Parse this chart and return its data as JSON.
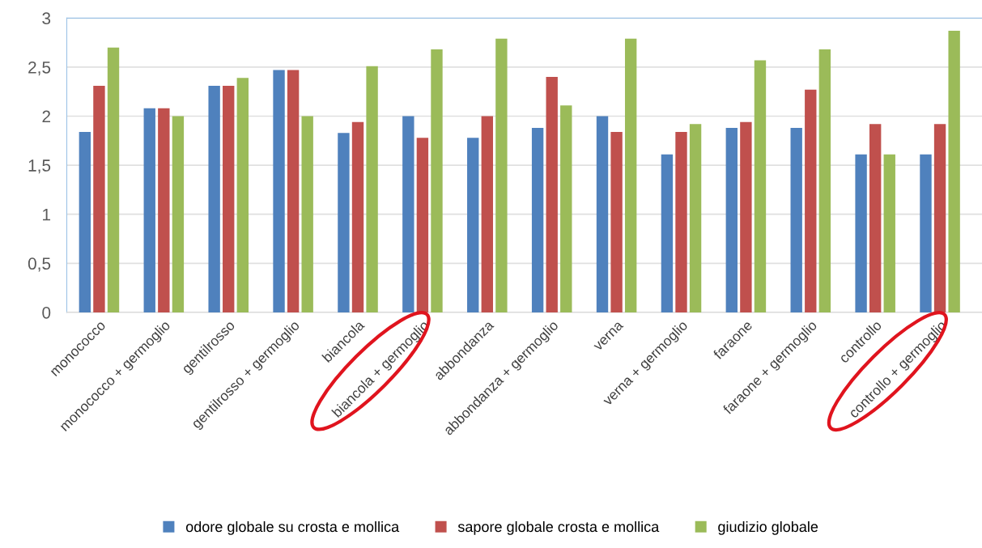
{
  "chart_data": {
    "type": "bar",
    "categories": [
      "monococco",
      "monococco + germoglio",
      "gentilrosso",
      "gentilrosso + germoglio",
      "biancola",
      "biancola + germoglio",
      "abbondanza",
      "abbondanza + germoglio",
      "verna",
      "verna + germoglio",
      "faraone",
      "faraone + germoglio",
      "controllo",
      "controllo + germoglio"
    ],
    "series": [
      {
        "name": "odore globale su crosta e mollica",
        "color": "#4f81bd",
        "values": [
          1.84,
          2.08,
          2.31,
          2.47,
          1.83,
          2.0,
          1.78,
          1.88,
          2.0,
          1.61,
          1.88,
          1.88,
          1.61,
          1.61
        ]
      },
      {
        "name": "sapore globale crosta e mollica",
        "color": "#c0504d",
        "values": [
          2.31,
          2.08,
          2.31,
          2.47,
          1.94,
          1.78,
          2.0,
          2.4,
          1.84,
          1.84,
          1.94,
          2.27,
          1.92,
          1.92
        ]
      },
      {
        "name": "giudizio globale",
        "color": "#9bbb59",
        "values": [
          2.7,
          2.0,
          2.39,
          2.0,
          2.51,
          2.68,
          2.79,
          2.11,
          2.79,
          1.92,
          2.57,
          2.68,
          1.61,
          2.87
        ]
      }
    ],
    "ylim": [
      0,
      3
    ],
    "yticks": [
      0,
      {
        "value": 0.5,
        "label": "0,5"
      },
      1,
      {
        "value": 1.5,
        "label": "1,5"
      },
      2,
      {
        "value": 2.5,
        "label": "2,5"
      },
      3
    ],
    "grid": "y",
    "legend": "bottom"
  }
}
